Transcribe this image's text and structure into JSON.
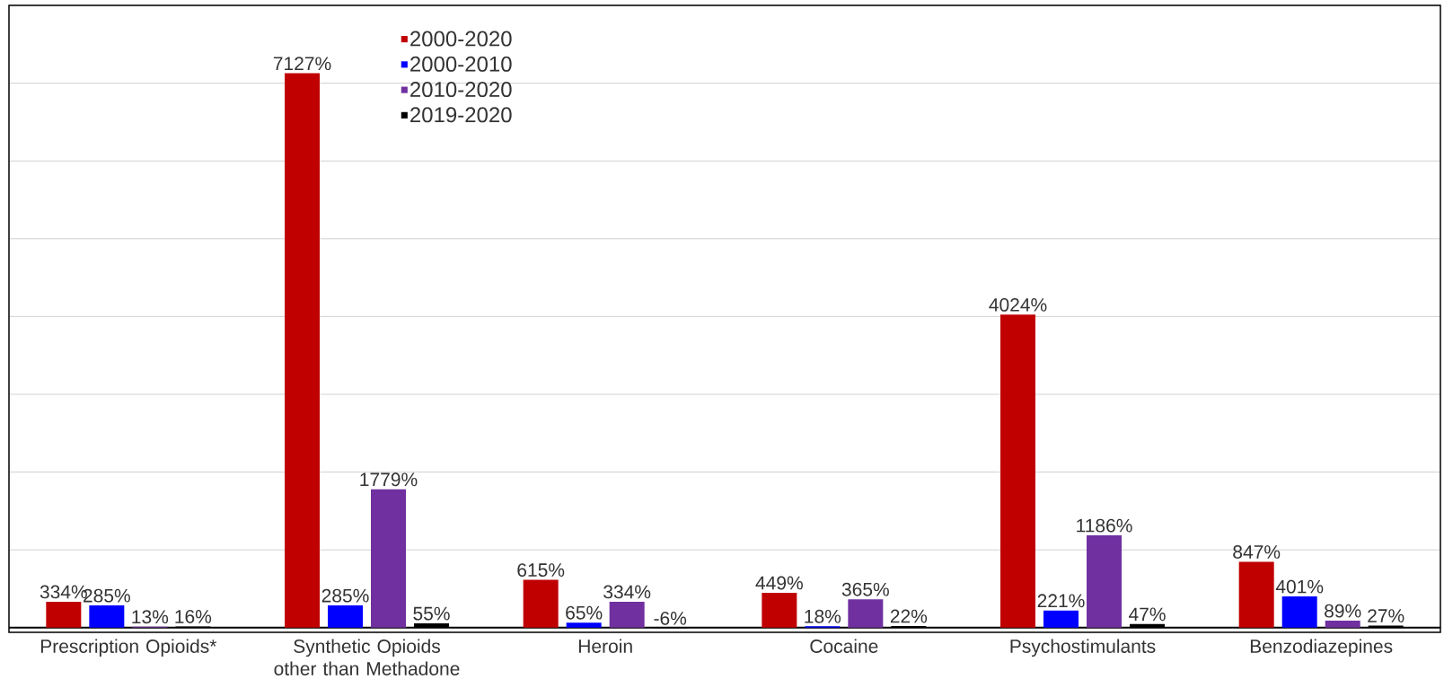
{
  "chart_data": {
    "type": "bar",
    "categories": [
      "Prescription Opioids*",
      "Synthetic Opioids other than Methadone",
      "Heroin",
      "Cocaine",
      "Psychostimulants",
      "Benzodiazepines"
    ],
    "series": [
      {
        "name": "2000-2020",
        "color": "#c00000",
        "values": [
          334,
          7127,
          615,
          449,
          4024,
          847
        ],
        "value_labels": [
          "334%",
          "7127%",
          "615%",
          "449%",
          "4024%",
          "847%"
        ]
      },
      {
        "name": "2000-2010",
        "color": "#0000ff",
        "values": [
          285,
          285,
          65,
          18,
          221,
          401
        ],
        "value_labels": [
          "285%",
          "285%",
          "65%",
          "18%",
          "221%",
          "401%"
        ]
      },
      {
        "name": "2010-2020",
        "color": "#7030a0",
        "values": [
          13,
          1779,
          334,
          365,
          1186,
          89
        ],
        "value_labels": [
          "13%",
          "1779%",
          "334%",
          "365%",
          "1186%",
          "89%"
        ]
      },
      {
        "name": "2019-2020",
        "color": "#000000",
        "values": [
          16,
          55,
          -6,
          22,
          47,
          27
        ],
        "value_labels": [
          "16%",
          "55%",
          "-6%",
          "22%",
          "47%",
          "27%"
        ]
      }
    ],
    "ylim": [
      -60,
      8000
    ],
    "yticks": [
      {
        "value": 0,
        "label": null
      },
      {
        "value": 1000,
        "label": null
      },
      {
        "value": 2000,
        "label": null
      },
      {
        "value": 3000,
        "label": null
      },
      {
        "value": 4000,
        "label": null
      },
      {
        "value": 5000,
        "label": null
      },
      {
        "value": 6000,
        "label": null
      },
      {
        "value": 7000,
        "label": null
      },
      {
        "value": 8000,
        "label": null
      }
    ],
    "tick_labels": "x",
    "grid": "y",
    "legend": "top left"
  }
}
